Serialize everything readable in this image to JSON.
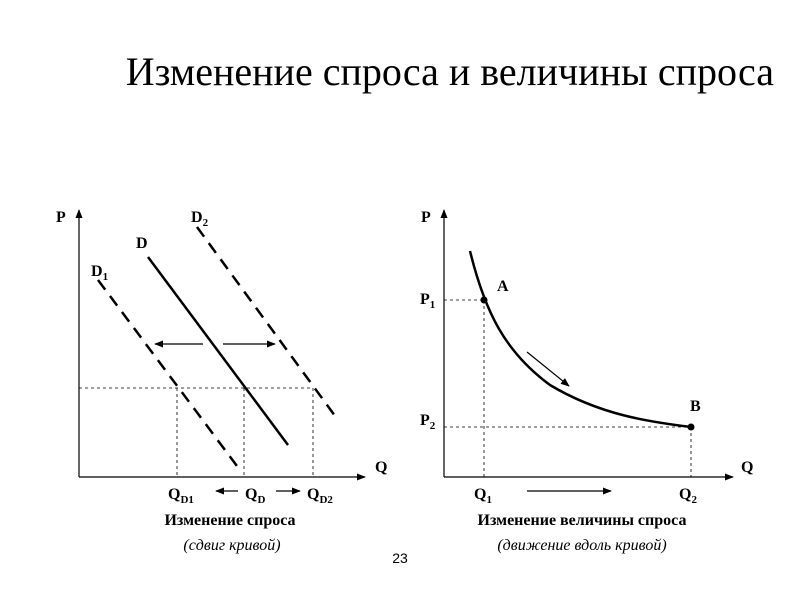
{
  "slide": {
    "title": "Изменение спроса и величины спроса",
    "page_number": "23"
  },
  "left_diagram": {
    "y_axis_label": "P",
    "x_axis_label": "Q",
    "curves": {
      "d": "D",
      "d1": {
        "base": "D",
        "sub": "1"
      },
      "d2": {
        "base": "D",
        "sub": "2"
      }
    },
    "x_labels": {
      "qd1": {
        "base": "Q",
        "sub": "D1"
      },
      "qd": {
        "base": "Q",
        "sub": "D"
      },
      "qd2": {
        "base": "Q",
        "sub": "D2"
      }
    },
    "caption": "Изменение спроса",
    "caption_sub": "(сдвиг кривой)"
  },
  "right_diagram": {
    "y_axis_label": "P",
    "x_axis_label": "Q",
    "point_a": "A",
    "point_b": "B",
    "p1": {
      "base": "P",
      "sub": "1"
    },
    "p2": {
      "base": "P",
      "sub": "2"
    },
    "q1": {
      "base": "Q",
      "sub": "1"
    },
    "q2": {
      "base": "Q",
      "sub": "2"
    },
    "caption": "Изменение величины спроса",
    "caption_sub": "(движение вдоль кривой)"
  }
}
